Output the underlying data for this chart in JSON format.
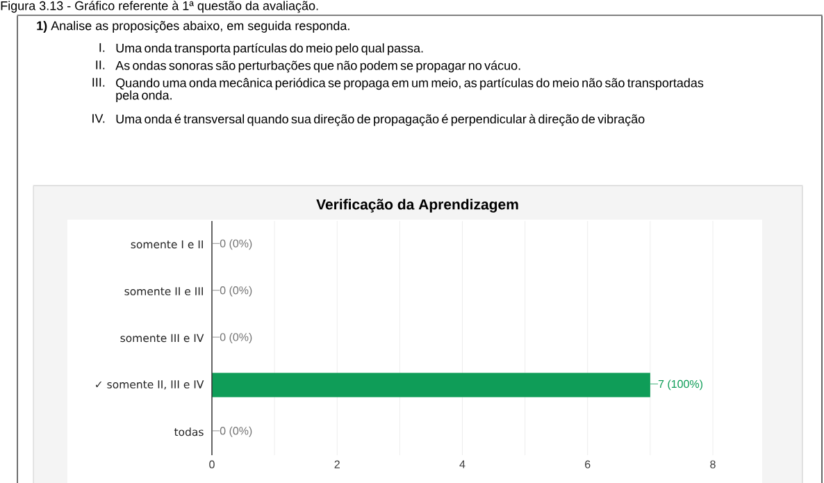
{
  "chart_data": {
    "type": "bar",
    "orientation": "horizontal",
    "title": "Verificação da Aprendizagem",
    "categories": [
      "somente I e II",
      "somente II e III",
      "somente III e IV",
      "✓ somente II, III e IV",
      "todas"
    ],
    "values": [
      0,
      0,
      0,
      7,
      0
    ],
    "color": "#0f9d58",
    "value_labels": [
      "0 (0%)",
      "0 (0%)",
      "0 (0%)",
      "7 (100%)",
      "0 (0%)"
    ],
    "xlim": [
      0,
      8
    ],
    "xticks": [
      0,
      {
        "value": 1,
        "label": null
      },
      2,
      {
        "value": 3,
        "label": null
      },
      4,
      {
        "value": 5,
        "label": null
      },
      6,
      {
        "value": 7,
        "label": null
      },
      8
    ],
    "grid": "x",
    "annotations": [
      "Figura 3.13 - Gráfico referente à 1ª questão da avaliação.",
      "**1)** Analise as proposições abaixo, em seguida responda.",
      "I.",
      "Uma onda transporta partículas do meio pelo qual passa.",
      "II.",
      "As ondas sonoras são perturbações que não podem se propagar no vácuo.",
      "III.",
      "Quando uma onda mecânica periódica se propaga em um meio, as partículas do meio não são transportadas pela onda.",
      "IV.",
      "Uma onda é transversal quando sua direção de propagação é perpendicular à direção de vibração"
    ]
  }
}
